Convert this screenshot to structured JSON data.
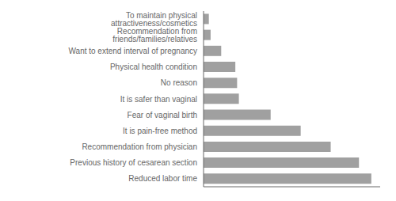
{
  "chart_data": {
    "type": "bar",
    "orientation": "horizontal",
    "categories": [
      "To maintain physical attractiveness/cosmetics",
      "Recommendation from friends/families/relatives",
      "Want to extend interval of pregnancy",
      "Physical health condition",
      "No reason",
      "It is safer than vaginal",
      "Fear of vaginal birth",
      "It is pain-free method",
      "Recommendation from physician",
      "Previous history of cesarean section",
      "Reduced labor time"
    ],
    "values": [
      3,
      4,
      10,
      18,
      19,
      20,
      38,
      55,
      72,
      88,
      95
    ],
    "color": "#a0a0a0",
    "xlim": [
      0,
      100
    ],
    "grid": false,
    "tick_labels": "y"
  }
}
